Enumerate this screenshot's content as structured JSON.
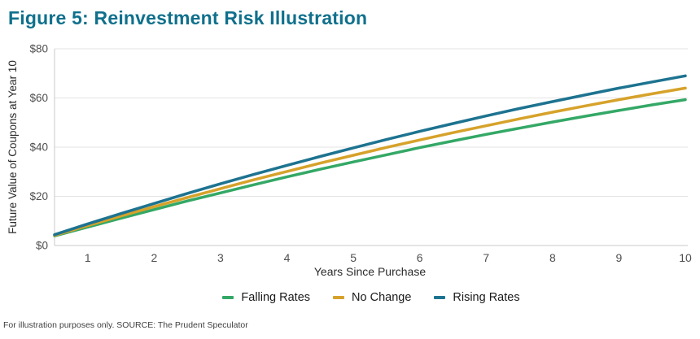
{
  "title": "Figure 5: Reinvestment Risk Illustration",
  "footer": "For illustration purposes only. SOURCE: The Prudent Speculator",
  "colors": {
    "title_text": "#10708c",
    "grid_line": "#e3e3e3",
    "axis_line": "#c9c9c9",
    "tick_text": "#4f4f4f",
    "axis_title_text": "#2b2b2b",
    "legend_text": "#1a1a1a",
    "footer_text": "#3f3f3f"
  },
  "chart_data": {
    "type": "line",
    "title": "Figure 5: Reinvestment Risk Illustration",
    "xlabel": "Years Since Purchase",
    "ylabel": "Future Value of Coupons at Year 10",
    "xlim": [
      0.5,
      10
    ],
    "ylim": [
      0,
      80
    ],
    "xticks": [
      1,
      2,
      3,
      4,
      5,
      6,
      7,
      8,
      9,
      10
    ],
    "ytick_values": [
      0,
      20,
      40,
      60,
      80
    ],
    "ytick_labels": [
      "$0",
      "$20",
      "$40",
      "$60",
      "$80"
    ],
    "grid": "horizontal",
    "legend_position": "bottom",
    "x": [
      0.5,
      1,
      1.5,
      2,
      2.5,
      3,
      3.5,
      4,
      4.5,
      5,
      5.5,
      6,
      6.5,
      7,
      7.5,
      8,
      8.5,
      9,
      9.5,
      10
    ],
    "series": [
      {
        "name": "Falling Rates",
        "color": "#34a866",
        "values": [
          3.9,
          7.5,
          11.1,
          14.6,
          18.1,
          21.4,
          24.7,
          27.9,
          31.0,
          34.0,
          36.9,
          39.8,
          42.5,
          45.2,
          47.7,
          50.2,
          52.6,
          54.9,
          57.2,
          59.3
        ]
      },
      {
        "name": "No Change",
        "color": "#d6a22a",
        "values": [
          4.1,
          8.1,
          12.0,
          15.8,
          19.5,
          23.1,
          26.7,
          30.1,
          33.5,
          36.7,
          39.9,
          42.9,
          45.9,
          48.7,
          51.5,
          54.2,
          56.8,
          59.3,
          61.7,
          64.0
        ]
      },
      {
        "name": "Rising Rates",
        "color": "#1d7390",
        "values": [
          4.4,
          8.8,
          13.0,
          17.1,
          21.2,
          25.1,
          28.9,
          32.6,
          36.2,
          39.7,
          43.1,
          46.4,
          49.6,
          52.7,
          55.7,
          58.5,
          61.3,
          64.0,
          66.5,
          69.0
        ]
      }
    ]
  }
}
